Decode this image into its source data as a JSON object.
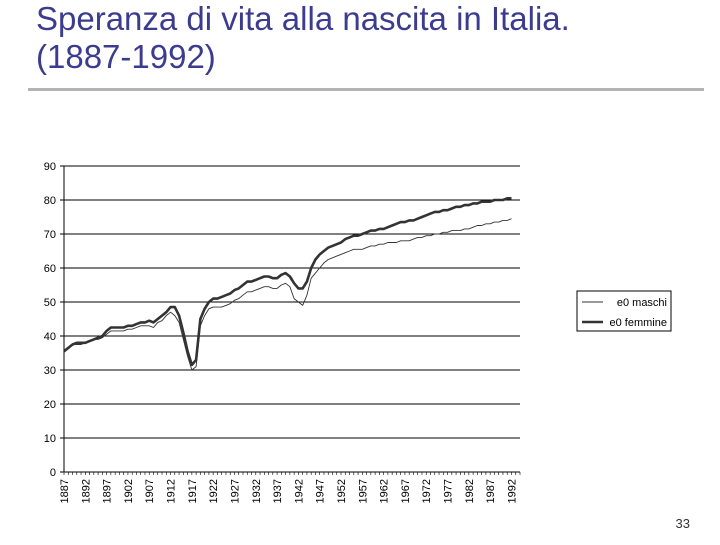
{
  "slide": {
    "title_line1": "Speranza di vita alla nascita in Italia.",
    "title_line2": "(1887-1992)",
    "page_number": "33"
  },
  "colors": {
    "title": "#3b3b8f",
    "series_maschi": "#333333",
    "series_femmine": "#333333",
    "grid": "#000000"
  },
  "chart_data": {
    "type": "line",
    "title": "",
    "xlabel": "",
    "ylabel": "",
    "ylim": [
      0,
      90
    ],
    "yticks": [
      0,
      10,
      20,
      30,
      40,
      50,
      60,
      70,
      80,
      90
    ],
    "xlim": [
      1887,
      1994
    ],
    "xtick_labels": [
      "1887",
      "1892",
      "1897",
      "1902",
      "1907",
      "1912",
      "1917",
      "1922",
      "1927",
      "1932",
      "1937",
      "1942",
      "1947",
      "1952",
      "1957",
      "1962",
      "1967",
      "1972",
      "1977",
      "1982",
      "1987",
      "1992"
    ],
    "grid": true,
    "legend_position": "right",
    "series": [
      {
        "name": "e0 maschi",
        "line_weight": "thin",
        "points": [
          [
            1887,
            35.5
          ],
          [
            1888,
            36.5
          ],
          [
            1889,
            37.5
          ],
          [
            1890,
            37.5
          ],
          [
            1891,
            37.5
          ],
          [
            1892,
            38
          ],
          [
            1893,
            38.5
          ],
          [
            1894,
            39
          ],
          [
            1895,
            39
          ],
          [
            1896,
            39.5
          ],
          [
            1897,
            40.5
          ],
          [
            1898,
            41.5
          ],
          [
            1899,
            41.5
          ],
          [
            1900,
            41.5
          ],
          [
            1901,
            41.5
          ],
          [
            1902,
            42
          ],
          [
            1903,
            42
          ],
          [
            1904,
            42.5
          ],
          [
            1905,
            43
          ],
          [
            1906,
            43
          ],
          [
            1907,
            43
          ],
          [
            1908,
            42.5
          ],
          [
            1909,
            44
          ],
          [
            1910,
            44.5
          ],
          [
            1911,
            46
          ],
          [
            1912,
            47
          ],
          [
            1913,
            46
          ],
          [
            1914,
            44
          ],
          [
            1915,
            39
          ],
          [
            1916,
            34
          ],
          [
            1917,
            30
          ],
          [
            1918,
            31
          ],
          [
            1919,
            43
          ],
          [
            1920,
            46
          ],
          [
            1921,
            48
          ],
          [
            1922,
            48.5
          ],
          [
            1923,
            48.5
          ],
          [
            1924,
            48.5
          ],
          [
            1925,
            49
          ],
          [
            1926,
            49.5
          ],
          [
            1927,
            50.5
          ],
          [
            1928,
            51
          ],
          [
            1929,
            52
          ],
          [
            1930,
            53
          ],
          [
            1931,
            53
          ],
          [
            1932,
            53.5
          ],
          [
            1933,
            54
          ],
          [
            1934,
            54.5
          ],
          [
            1935,
            54.5
          ],
          [
            1936,
            54
          ],
          [
            1937,
            54
          ],
          [
            1938,
            55
          ],
          [
            1939,
            55.5
          ],
          [
            1940,
            54.5
          ],
          [
            1941,
            51
          ],
          [
            1942,
            50
          ],
          [
            1943,
            49
          ],
          [
            1944,
            52
          ],
          [
            1945,
            57
          ],
          [
            1946,
            58.5
          ],
          [
            1947,
            60
          ],
          [
            1948,
            61.5
          ],
          [
            1949,
            62.5
          ],
          [
            1950,
            63
          ],
          [
            1951,
            63.5
          ],
          [
            1952,
            64
          ],
          [
            1953,
            64.5
          ],
          [
            1954,
            65
          ],
          [
            1955,
            65.5
          ],
          [
            1956,
            65.5
          ],
          [
            1957,
            65.5
          ],
          [
            1958,
            66
          ],
          [
            1959,
            66.5
          ],
          [
            1960,
            66.5
          ],
          [
            1961,
            67
          ],
          [
            1962,
            67
          ],
          [
            1963,
            67.5
          ],
          [
            1964,
            67.5
          ],
          [
            1965,
            67.5
          ],
          [
            1966,
            68
          ],
          [
            1967,
            68
          ],
          [
            1968,
            68
          ],
          [
            1969,
            68.5
          ],
          [
            1970,
            69
          ],
          [
            1971,
            69
          ],
          [
            1972,
            69.5
          ],
          [
            1973,
            69.5
          ],
          [
            1974,
            70
          ],
          [
            1975,
            70
          ],
          [
            1976,
            70.5
          ],
          [
            1977,
            70.5
          ],
          [
            1978,
            71
          ],
          [
            1979,
            71
          ],
          [
            1980,
            71
          ],
          [
            1981,
            71.5
          ],
          [
            1982,
            71.5
          ],
          [
            1983,
            72
          ],
          [
            1984,
            72.5
          ],
          [
            1985,
            72.5
          ],
          [
            1986,
            73
          ],
          [
            1987,
            73
          ],
          [
            1988,
            73.5
          ],
          [
            1989,
            73.5
          ],
          [
            1990,
            74
          ],
          [
            1991,
            74
          ],
          [
            1992,
            74.5
          ]
        ]
      },
      {
        "name": "e0 femmine",
        "line_weight": "thick",
        "points": [
          [
            1887,
            35.5
          ],
          [
            1888,
            36.5
          ],
          [
            1889,
            37.5
          ],
          [
            1890,
            38
          ],
          [
            1891,
            38
          ],
          [
            1892,
            38
          ],
          [
            1893,
            38.5
          ],
          [
            1894,
            39
          ],
          [
            1895,
            39.5
          ],
          [
            1896,
            40
          ],
          [
            1897,
            41.5
          ],
          [
            1898,
            42.5
          ],
          [
            1899,
            42.5
          ],
          [
            1900,
            42.5
          ],
          [
            1901,
            42.5
          ],
          [
            1902,
            43
          ],
          [
            1903,
            43
          ],
          [
            1904,
            43.5
          ],
          [
            1905,
            44
          ],
          [
            1906,
            44
          ],
          [
            1907,
            44.5
          ],
          [
            1908,
            44
          ],
          [
            1909,
            45
          ],
          [
            1910,
            46
          ],
          [
            1911,
            47
          ],
          [
            1912,
            48.5
          ],
          [
            1913,
            48.5
          ],
          [
            1914,
            46
          ],
          [
            1915,
            41
          ],
          [
            1916,
            35.5
          ],
          [
            1917,
            31.5
          ],
          [
            1918,
            33
          ],
          [
            1919,
            45
          ],
          [
            1920,
            48
          ],
          [
            1921,
            50
          ],
          [
            1922,
            51
          ],
          [
            1923,
            51
          ],
          [
            1924,
            51.5
          ],
          [
            1925,
            52
          ],
          [
            1926,
            52.5
          ],
          [
            1927,
            53.5
          ],
          [
            1928,
            54
          ],
          [
            1929,
            55
          ],
          [
            1930,
            56
          ],
          [
            1931,
            56
          ],
          [
            1932,
            56.5
          ],
          [
            1933,
            57
          ],
          [
            1934,
            57.5
          ],
          [
            1935,
            57.5
          ],
          [
            1936,
            57
          ],
          [
            1937,
            57
          ],
          [
            1938,
            58
          ],
          [
            1939,
            58.5
          ],
          [
            1940,
            57.5
          ],
          [
            1941,
            55.5
          ],
          [
            1942,
            54
          ],
          [
            1943,
            54
          ],
          [
            1944,
            56
          ],
          [
            1945,
            60
          ],
          [
            1946,
            62.5
          ],
          [
            1947,
            64
          ],
          [
            1948,
            65
          ],
          [
            1949,
            66
          ],
          [
            1950,
            66.5
          ],
          [
            1951,
            67
          ],
          [
            1952,
            67.5
          ],
          [
            1953,
            68.5
          ],
          [
            1954,
            69
          ],
          [
            1955,
            69.5
          ],
          [
            1956,
            69.5
          ],
          [
            1957,
            70
          ],
          [
            1958,
            70.5
          ],
          [
            1959,
            71
          ],
          [
            1960,
            71
          ],
          [
            1961,
            71.5
          ],
          [
            1962,
            71.5
          ],
          [
            1963,
            72
          ],
          [
            1964,
            72.5
          ],
          [
            1965,
            73
          ],
          [
            1966,
            73.5
          ],
          [
            1967,
            73.5
          ],
          [
            1968,
            74
          ],
          [
            1969,
            74
          ],
          [
            1970,
            74.5
          ],
          [
            1971,
            75
          ],
          [
            1972,
            75.5
          ],
          [
            1973,
            76
          ],
          [
            1974,
            76.5
          ],
          [
            1975,
            76.5
          ],
          [
            1976,
            77
          ],
          [
            1977,
            77
          ],
          [
            1978,
            77.5
          ],
          [
            1979,
            78
          ],
          [
            1980,
            78
          ],
          [
            1981,
            78.5
          ],
          [
            1982,
            78.5
          ],
          [
            1983,
            79
          ],
          [
            1984,
            79
          ],
          [
            1985,
            79.5
          ],
          [
            1986,
            79.5
          ],
          [
            1987,
            79.5
          ],
          [
            1988,
            80
          ],
          [
            1989,
            80
          ],
          [
            1990,
            80
          ],
          [
            1991,
            80.5
          ],
          [
            1992,
            80.5
          ]
        ]
      }
    ]
  }
}
